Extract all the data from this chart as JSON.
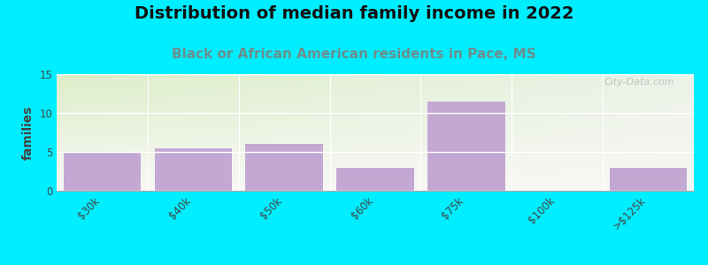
{
  "title": "Distribution of median family income in 2022",
  "subtitle": "Black or African American residents in Pace, MS",
  "categories": [
    "$30k",
    "$40k",
    "$50k",
    "$60k",
    "$75k",
    "$100k",
    ">$125k"
  ],
  "values": [
    5,
    5.5,
    6,
    3,
    11.5,
    0,
    3
  ],
  "bar_color": "#c4a8d4",
  "background_outer": "#00eeff",
  "background_inner_top_left": "#ddeec8",
  "background_inner_right": "#e8f0e8",
  "background_inner_bottom": "#f5f5f5",
  "ylabel": "families",
  "ylim": [
    0,
    15
  ],
  "yticks": [
    0,
    5,
    10,
    15
  ],
  "title_fontsize": 14,
  "subtitle_fontsize": 11,
  "bar_edge_color": "none",
  "watermark": "City-Data.com",
  "title_color": "#111111",
  "subtitle_color": "#6b8e8e",
  "ylabel_color": "#444444",
  "tick_color": "#444444"
}
